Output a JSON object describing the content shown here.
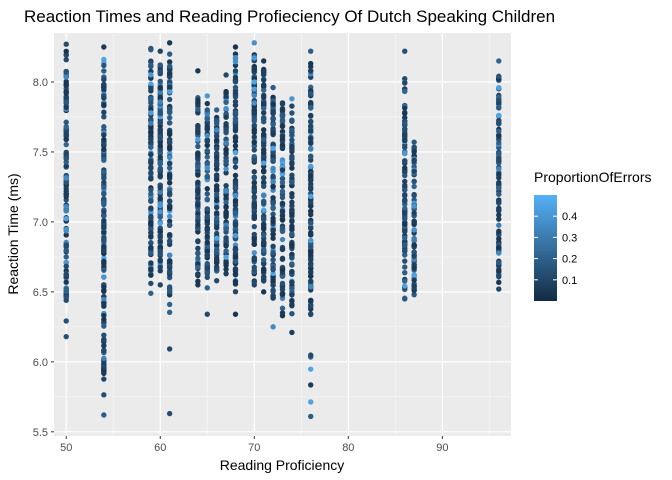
{
  "chart_data": {
    "type": "scatter",
    "title": "Reaction Times and Reading Profieciency Of Dutch Speaking Children",
    "xlabel": "Reading Proficiency",
    "ylabel": "Reaction Time (ms)",
    "xlim": [
      48.7,
      97.3
    ],
    "ylim": [
      5.47,
      8.35
    ],
    "x_ticks": [
      50,
      60,
      70,
      80,
      90
    ],
    "x_tick_labels": [
      "50",
      "60",
      "70",
      "80",
      "90"
    ],
    "y_ticks": [
      5.5,
      6.0,
      6.5,
      7.0,
      7.5,
      8.0
    ],
    "y_tick_labels": [
      "5.5",
      "6.0",
      "6.5",
      "7.0",
      "7.5",
      "8.0"
    ],
    "grid": true,
    "background": "#ebebeb",
    "legend": {
      "title": "ProportionOfErrors",
      "placement": "right",
      "type": "continuous-colorbar",
      "range": [
        0.0,
        0.5
      ],
      "ticks": [
        0.1,
        0.2,
        0.3,
        0.4
      ],
      "tick_labels": [
        "0.1",
        "0.2",
        "0.3",
        "0.4"
      ],
      "color_low": "#132b43",
      "color_high": "#56b1f7"
    },
    "columns": [
      {
        "x": 50,
        "min": 6.18,
        "max": 8.27,
        "dense_min": 6.45,
        "dense_max": 8.2,
        "n": 130
      },
      {
        "x": 54,
        "min": 5.62,
        "max": 8.25,
        "dense_min": 5.9,
        "dense_max": 8.1,
        "n": 150
      },
      {
        "x": 59,
        "min": 6.49,
        "max": 8.24,
        "dense_min": 6.6,
        "dense_max": 8.15,
        "n": 110
      },
      {
        "x": 60,
        "min": 6.55,
        "max": 8.22,
        "dense_min": 6.65,
        "dense_max": 8.15,
        "n": 120
      },
      {
        "x": 61,
        "min": 5.63,
        "max": 8.28,
        "dense_min": 6.5,
        "dense_max": 8.15,
        "n": 110
      },
      {
        "x": 64,
        "min": 6.55,
        "max": 8.08,
        "dense_min": 6.6,
        "dense_max": 7.9,
        "n": 100
      },
      {
        "x": 65,
        "min": 6.34,
        "max": 7.9,
        "dense_min": 6.6,
        "dense_max": 7.85,
        "n": 90
      },
      {
        "x": 66,
        "min": 6.58,
        "max": 7.8,
        "dense_min": 6.65,
        "dense_max": 7.75,
        "n": 80
      },
      {
        "x": 67,
        "min": 6.63,
        "max": 8.05,
        "dense_min": 6.7,
        "dense_max": 7.95,
        "n": 90
      },
      {
        "x": 68,
        "min": 6.34,
        "max": 8.25,
        "dense_min": 6.5,
        "dense_max": 8.2,
        "n": 120
      },
      {
        "x": 70,
        "min": 6.55,
        "max": 8.28,
        "dense_min": 6.6,
        "dense_max": 8.2,
        "n": 120
      },
      {
        "x": 71,
        "min": 6.5,
        "max": 8.15,
        "dense_min": 6.6,
        "dense_max": 8.1,
        "n": 100
      },
      {
        "x": 72,
        "min": 6.25,
        "max": 7.96,
        "dense_min": 6.45,
        "dense_max": 7.9,
        "n": 100
      },
      {
        "x": 73,
        "min": 6.33,
        "max": 7.85,
        "dense_min": 6.45,
        "dense_max": 7.85,
        "n": 90
      },
      {
        "x": 74,
        "min": 6.21,
        "max": 7.88,
        "dense_min": 6.4,
        "dense_max": 7.8,
        "n": 90
      },
      {
        "x": 76,
        "min": 5.61,
        "max": 8.22,
        "dense_min": 6.3,
        "dense_max": 8.1,
        "n": 130
      },
      {
        "x": 86,
        "min": 6.45,
        "max": 8.22,
        "dense_min": 6.5,
        "dense_max": 8.0,
        "n": 100
      },
      {
        "x": 87,
        "min": 6.48,
        "max": 7.57,
        "dense_min": 6.5,
        "dense_max": 7.55,
        "n": 80
      },
      {
        "x": 96,
        "min": 6.52,
        "max": 8.15,
        "dense_min": 6.6,
        "dense_max": 8.05,
        "n": 100
      }
    ]
  }
}
